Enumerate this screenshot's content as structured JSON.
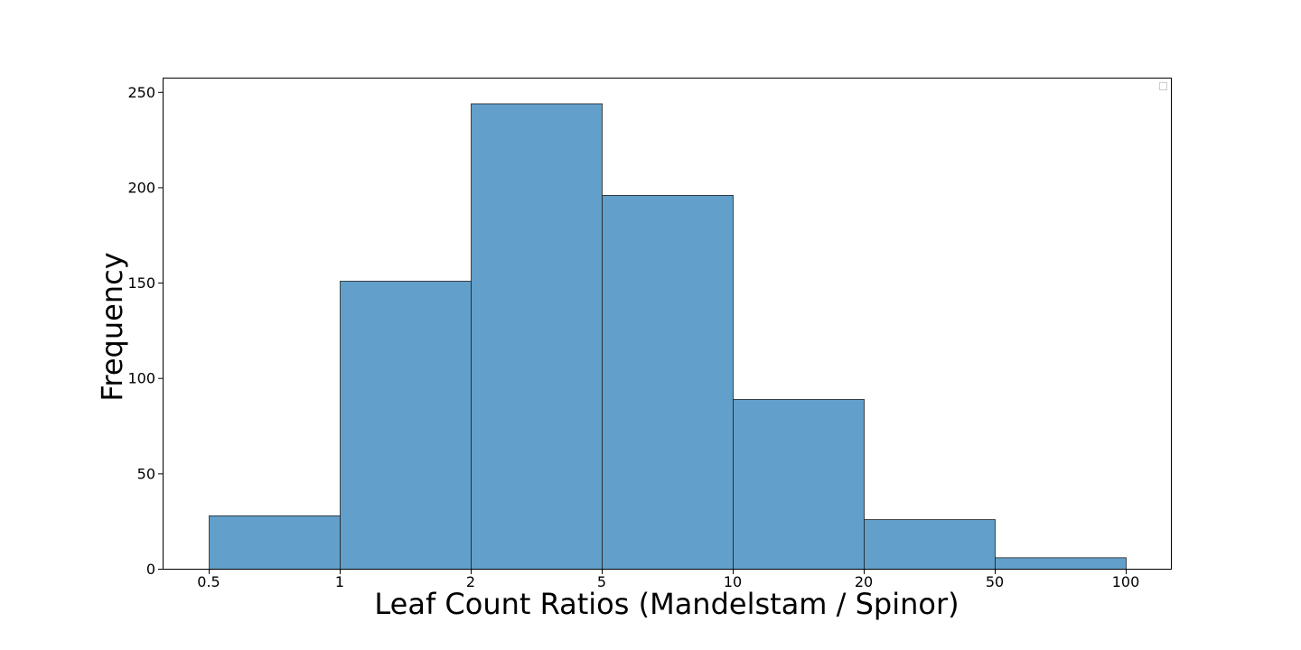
{
  "chart_data": {
    "type": "bar",
    "title": "",
    "xlabel": "Leaf Count Ratios (Mandelstam / Spinor)",
    "ylabel": "Frequency",
    "bin_edges": [
      "0.5",
      "1",
      "2",
      "5",
      "10",
      "20",
      "50",
      "100"
    ],
    "values": [
      28,
      151,
      244,
      196,
      89,
      26,
      6
    ],
    "ylim": [
      0,
      257
    ],
    "yticks": [
      0,
      50,
      100,
      150,
      200,
      250
    ],
    "grid": false,
    "legend": "top-right (empty)",
    "colors": {
      "bar_fill": "#629fca",
      "bar_edge": "#222222",
      "axis": "#000000"
    }
  }
}
